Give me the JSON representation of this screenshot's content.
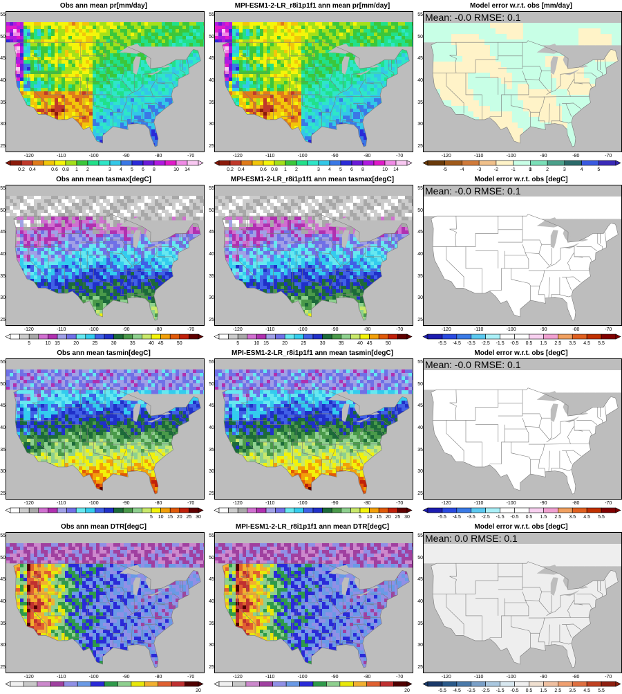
{
  "palettes": {
    "pr": [
      "#8b1a0a",
      "#c0392b",
      "#e07b1a",
      "#f2c60a",
      "#f5f50a",
      "#a4e01a",
      "#3bc73b",
      "#22e08a",
      "#2ee6c8",
      "#33c8e8",
      "#3a78e6",
      "#2a2ad8",
      "#6a1ad8",
      "#b01ae0",
      "#e01ac8",
      "#f08be6",
      "#f9c8f2"
    ],
    "tas": [
      "#ffffff",
      "#cccccc",
      "#a8a8a8",
      "#d070d0",
      "#b030b0",
      "#a0a0e6",
      "#7070e6",
      "#66e8f0",
      "#33ccee",
      "#4060e6",
      "#2030c8",
      "#1c6a3a",
      "#4a9a4a",
      "#8ed08e",
      "#c8e86a",
      "#f2f20a",
      "#f2a00a",
      "#e05a0a",
      "#c0200a",
      "#600000"
    ],
    "dtr": [
      "#f0f0f0",
      "#c8c8c8",
      "#cc88cc",
      "#a040a0",
      "#9090e6",
      "#6a9ae6",
      "#2a2ad8",
      "#2e9a4a",
      "#8ed08e",
      "#e8e80a",
      "#f2b030",
      "#e06030",
      "#c03030",
      "#500000"
    ],
    "err_pr": [
      "#6a3a0a",
      "#a05a1a",
      "#d07a3a",
      "#f0c08a",
      "#fff3c8",
      "#c8ffe6",
      "#7ae0b8",
      "#4aa08a",
      "#2a6a6a",
      "#3a5ae0",
      "#3a2ab8"
    ],
    "err_t": [
      "#1c1cb0",
      "#2a4ae0",
      "#3a7ae6",
      "#5ac8f0",
      "#aaf0f8",
      "#ffffff",
      "#ffffff",
      "#f8d0f0",
      "#f0a0d0",
      "#f0a060",
      "#e06020",
      "#c03000",
      "#800000"
    ],
    "err_dtr": [
      "#1a3a6a",
      "#2a5a8a",
      "#4a7aaa",
      "#7aa0c8",
      "#aac8e0",
      "#d8e8f0",
      "#f0f0f0",
      "#f0e0d0",
      "#f0c0a0",
      "#f0a070",
      "#e07040",
      "#c04020",
      "#902010"
    ]
  },
  "panels": [
    {
      "id": "pr-obs",
      "title": "Obs  ann mean pr[mm/day]",
      "type": "field",
      "field": "pr",
      "cbar": "pr",
      "ticks": [
        "0.2",
        "0.4",
        "0.6",
        "0.8",
        "1",
        "2",
        "3",
        "4",
        "5",
        "6",
        "8",
        "10",
        "14"
      ]
    },
    {
      "id": "pr-model",
      "title": "MPI-ESM1-2-LR_r8i1p1f1 ann mean pr[mm/day]",
      "type": "field",
      "field": "pr",
      "cbar": "pr",
      "ticks": [
        "0.2",
        "0.4",
        "0.6",
        "0.8",
        "1",
        "2",
        "3",
        "4",
        "5",
        "6",
        "8",
        "10",
        "14"
      ]
    },
    {
      "id": "pr-error",
      "title": "Model error w.r.t. obs [mm/day]",
      "type": "error",
      "errtype": "pr",
      "stats": "Mean: -0.0   RMSE: 0.1",
      "cbar": "err_pr",
      "ticks": [
        "-5",
        "-4",
        "-3",
        "-2",
        "-1",
        "0",
        "1",
        "2",
        "3",
        "4",
        "5"
      ]
    },
    {
      "id": "tasmax-obs",
      "title": "Obs  ann mean tasmax[degC]",
      "type": "field",
      "field": "tasmax",
      "cbar": "tas",
      "ticks": [
        "5",
        "10",
        "15",
        "20",
        "25",
        "30",
        "35",
        "40",
        "45",
        "50"
      ]
    },
    {
      "id": "tasmax-model",
      "title": "MPI-ESM1-2-LR_r8i1p1f1 ann mean tasmax[degC]",
      "type": "field",
      "field": "tasmax",
      "cbar": "tas",
      "ticks": [
        "5",
        "10",
        "15",
        "20",
        "25",
        "30",
        "35",
        "40",
        "45",
        "50"
      ]
    },
    {
      "id": "tasmax-error",
      "title": "Model error w.r.t. obs [degC]",
      "type": "error",
      "errtype": "white",
      "stats": "Mean: -0.0   RMSE: 0.1",
      "cbar": "err_t",
      "ticks": [
        "-5.5",
        "-4.5",
        "-3.5",
        "-2.5",
        "-1.5",
        "-0.5",
        "0.5",
        "1.5",
        "2.5",
        "3.5",
        "4.5",
        "5.5"
      ]
    },
    {
      "id": "tasmin-obs",
      "title": "Obs  ann mean tasmin[degC]",
      "type": "field",
      "field": "tasmin",
      "cbar": "tas",
      "ticks": [
        "5",
        "10",
        "15",
        "20",
        "25",
        "30"
      ]
    },
    {
      "id": "tasmin-model",
      "title": "MPI-ESM1-2-LR_r8i1p1f1 ann mean tasmin[degC]",
      "type": "field",
      "field": "tasmin",
      "cbar": "tas",
      "ticks": [
        "5",
        "10",
        "15",
        "20",
        "25",
        "30"
      ]
    },
    {
      "id": "tasmin-error",
      "title": "Model error w.r.t. obs [degC]",
      "type": "error",
      "errtype": "white",
      "stats": "Mean: -0.0   RMSE: 0.1",
      "cbar": "err_t",
      "ticks": [
        "-5.5",
        "-4.5",
        "-3.5",
        "-2.5",
        "-1.5",
        "-0.5",
        "0.5",
        "1.5",
        "2.5",
        "3.5",
        "4.5",
        "5.5"
      ]
    },
    {
      "id": "dtr-obs",
      "title": "Obs  ann mean DTR[degC]",
      "type": "field",
      "field": "dtr",
      "cbar": "dtr",
      "ticks": [
        "20"
      ]
    },
    {
      "id": "dtr-model",
      "title": "MPI-ESM1-2-LR_r8i1p1f1 ann mean DTR[degC]",
      "type": "field",
      "field": "dtr",
      "cbar": "dtr",
      "ticks": [
        "20"
      ]
    },
    {
      "id": "dtr-error",
      "title": "Model error w.r.t. obs [degC]",
      "type": "error",
      "errtype": "gray",
      "stats": "Mean: 0.0   RMSE: 0.1",
      "cbar": "err_dtr",
      "ticks": [
        "-5.5",
        "-4.5",
        "-3.5",
        "-2.5",
        "-1.5",
        "-0.5",
        "0.5",
        "1.5",
        "2.5",
        "3.5",
        "4.5",
        "5.5"
      ]
    }
  ],
  "axes": {
    "lon_ticks": [
      "-120",
      "-110",
      "-100",
      "-90",
      "-80",
      "-70"
    ],
    "lat_ticks": [
      "55",
      "50",
      "45",
      "40",
      "35",
      "30",
      "25"
    ]
  }
}
